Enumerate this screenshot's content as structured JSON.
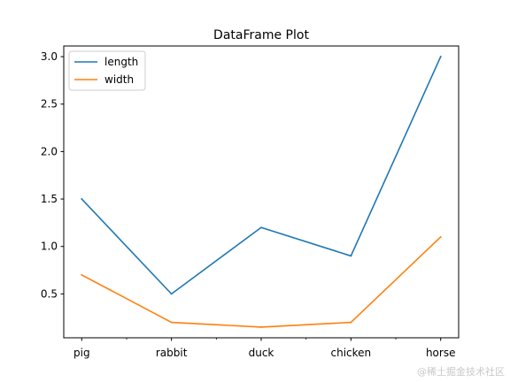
{
  "chart_data": {
    "type": "line",
    "title": "DataFrame Plot",
    "xlabel": "",
    "ylabel": "",
    "categories": [
      "pig",
      "rabbit",
      "duck",
      "chicken",
      "horse"
    ],
    "series": [
      {
        "name": "length",
        "color": "#1f77b4",
        "values": [
          1.5,
          0.5,
          1.2,
          0.9,
          3.0
        ]
      },
      {
        "name": "width",
        "color": "#ff7f0e",
        "values": [
          0.7,
          0.2,
          0.15,
          0.2,
          1.1
        ]
      }
    ],
    "ylim": [
      0.0375,
      3.1125
    ],
    "yticks": [
      0.5,
      1.0,
      1.5,
      2.0,
      2.5,
      3.0
    ],
    "ytick_labels": [
      "0.5",
      "1.0",
      "1.5",
      "2.0",
      "2.5",
      "3.0"
    ],
    "minor_xticks": true,
    "grid": false,
    "legend_position": "top-left"
  },
  "watermark": "@稀土掘金技术社区"
}
